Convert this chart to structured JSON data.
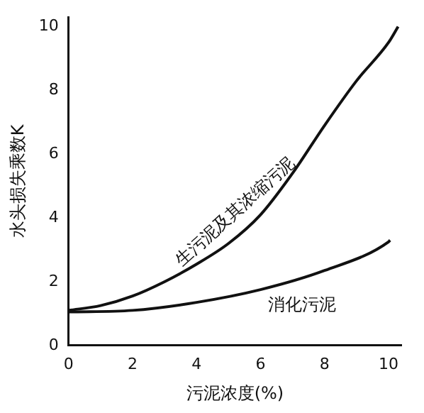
{
  "chart_data": {
    "type": "line",
    "xlabel": "污泥浓度(%)",
    "ylabel": "水头损失乘数K",
    "xlim": [
      0,
      10.4
    ],
    "xticks": [
      0,
      2,
      4,
      6,
      8,
      10
    ],
    "ylim": [
      0,
      10.3
    ],
    "yticks": [
      0,
      2,
      4,
      6,
      8,
      10
    ],
    "grid": false,
    "legend": false,
    "marker": "none",
    "line_style": "solid",
    "series": [
      {
        "name": "生污泥及其浓缩污泥",
        "color": "#111111",
        "x": [
          0,
          1,
          2,
          3,
          4,
          5,
          6,
          7,
          8,
          9,
          10,
          10.3
        ],
        "values": [
          1.1,
          1.25,
          1.55,
          2.0,
          2.55,
          3.2,
          4.1,
          5.4,
          6.9,
          8.3,
          9.5,
          10.0
        ]
      },
      {
        "name": "消化污泥",
        "color": "#111111",
        "x": [
          0,
          2,
          4,
          6,
          8,
          10,
          10.05
        ],
        "values": [
          1.05,
          1.1,
          1.35,
          1.75,
          2.35,
          3.25,
          3.3
        ]
      }
    ]
  }
}
